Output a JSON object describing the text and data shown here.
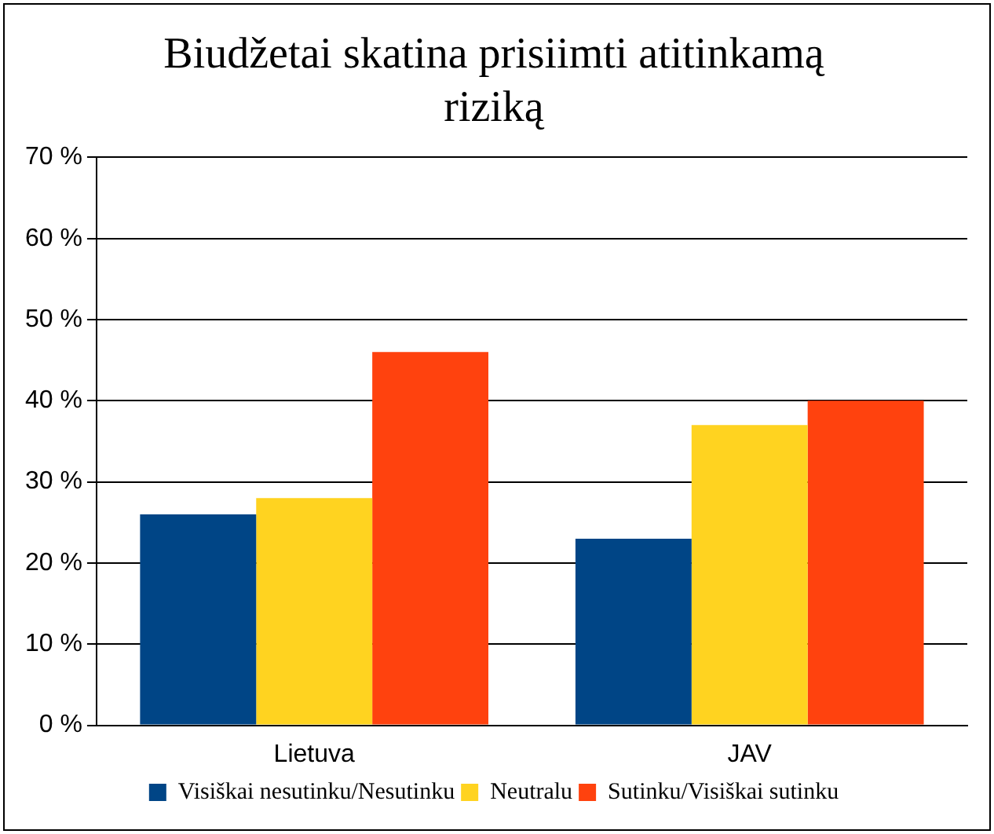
{
  "chart_data": {
    "type": "bar",
    "title": "Biudžetai skatina prisiimti atitinkamą riziką",
    "categories": [
      "Lietuva",
      "JAV"
    ],
    "series": [
      {
        "name": "Visiškai nesutinku/Nesutinku",
        "color": "#004586",
        "values": [
          26,
          23
        ]
      },
      {
        "name": "Neutralu",
        "color": "#ffd320",
        "values": [
          28,
          37
        ]
      },
      {
        "name": "Sutinku/Visiškai sutinku",
        "color": "#ff420e",
        "values": [
          46,
          40
        ]
      }
    ],
    "ylim": [
      0,
      70
    ],
    "yticks": [
      {
        "value": 0,
        "label": "0 %"
      },
      {
        "value": 10,
        "label": "10 %"
      },
      {
        "value": 20,
        "label": "20 %"
      },
      {
        "value": 30,
        "label": "30 %"
      },
      {
        "value": 40,
        "label": "40 %"
      },
      {
        "value": 50,
        "label": "50 %"
      },
      {
        "value": 60,
        "label": "60 %"
      },
      {
        "value": 70,
        "label": "70 %"
      }
    ],
    "grid": "y",
    "legend": "bottom"
  }
}
